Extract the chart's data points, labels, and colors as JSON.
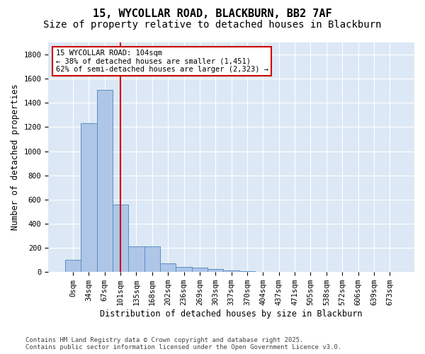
{
  "title_line1": "15, WYCOLLAR ROAD, BLACKBURN, BB2 7AF",
  "title_line2": "Size of property relative to detached houses in Blackburn",
  "xlabel": "Distribution of detached houses by size in Blackburn",
  "ylabel": "Number of detached properties",
  "bar_values": [
    100,
    1230,
    1510,
    560,
    210,
    210,
    70,
    45,
    35,
    25,
    15,
    5,
    0,
    0,
    0,
    0,
    0,
    0,
    0,
    0,
    0
  ],
  "categories": [
    "0sqm",
    "34sqm",
    "67sqm",
    "101sqm",
    "135sqm",
    "168sqm",
    "202sqm",
    "236sqm",
    "269sqm",
    "303sqm",
    "337sqm",
    "370sqm",
    "404sqm",
    "437sqm",
    "471sqm",
    "505sqm",
    "538sqm",
    "572sqm",
    "606sqm",
    "639sqm",
    "673sqm"
  ],
  "bar_color": "#aec6e8",
  "bar_edge_color": "#5a8fc2",
  "vline_x": 3,
  "vline_color": "#cc0000",
  "annotation_text": "15 WYCOLLAR ROAD: 104sqm\n← 38% of detached houses are smaller (1,451)\n62% of semi-detached houses are larger (2,323) →",
  "annotation_box_color": "#cc0000",
  "ylim": [
    0,
    1900
  ],
  "yticks": [
    0,
    200,
    400,
    600,
    800,
    1000,
    1200,
    1400,
    1600,
    1800
  ],
  "background_color": "#dce8f5",
  "footer_line1": "Contains HM Land Registry data © Crown copyright and database right 2025.",
  "footer_line2": "Contains public sector information licensed under the Open Government Licence v3.0.",
  "title_fontsize": 11,
  "subtitle_fontsize": 10,
  "axis_label_fontsize": 8.5,
  "tick_fontsize": 7.5,
  "annotation_fontsize": 7.5,
  "footer_fontsize": 6.5
}
